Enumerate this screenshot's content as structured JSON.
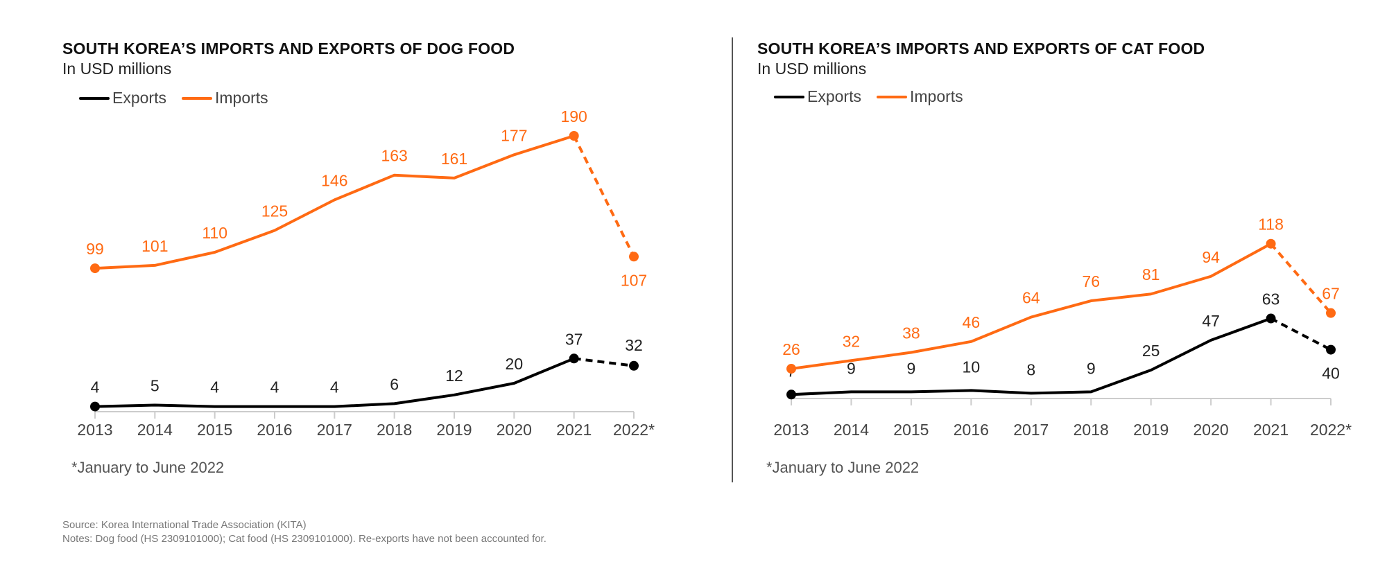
{
  "colors": {
    "exports": "#000000",
    "imports": "#FF6A13",
    "axis": "#cccccc"
  },
  "source": "Source: Korea International Trade Association (KITA)",
  "notes": "Notes: Dog food (HS 2309101000); Cat food (HS 2309101000). Re-exports have not been accounted for.",
  "chart_data": [
    {
      "type": "line",
      "title": "SOUTH KOREA’S IMPORTS AND EXPORTS OF DOG FOOD",
      "subtitle": "In USD millions",
      "footnote": "*January to June 2022",
      "legend": "top-left",
      "grid": false,
      "categories": [
        "2013",
        "2014",
        "2015",
        "2016",
        "2017",
        "2018",
        "2019",
        "2020",
        "2021",
        "2022*"
      ],
      "series": [
        {
          "name": "Exports",
          "values": [
            4,
            5,
            4,
            4,
            4,
            6,
            12,
            20,
            37,
            32
          ],
          "dashed_last_segment": true
        },
        {
          "name": "Imports",
          "values": [
            99,
            101,
            110,
            125,
            146,
            163,
            161,
            177,
            190,
            107
          ],
          "dashed_last_segment": true
        }
      ]
    },
    {
      "type": "line",
      "title": "SOUTH KOREA’S IMPORTS AND EXPORTS OF CAT FOOD",
      "subtitle": "In USD millions",
      "footnote": "*January to June 2022",
      "legend": "top-left",
      "grid": false,
      "categories": [
        "2013",
        "2014",
        "2015",
        "2016",
        "2017",
        "2018",
        "2019",
        "2020",
        "2021",
        "2022*"
      ],
      "series": [
        {
          "name": "Exports",
          "values": [
            7,
            9,
            9,
            10,
            8,
            9,
            25,
            47,
            63,
            40
          ],
          "dashed_last_segment": true
        },
        {
          "name": "Imports",
          "values": [
            26,
            32,
            38,
            46,
            64,
            76,
            81,
            94,
            118,
            67
          ],
          "dashed_last_segment": true
        }
      ]
    }
  ]
}
